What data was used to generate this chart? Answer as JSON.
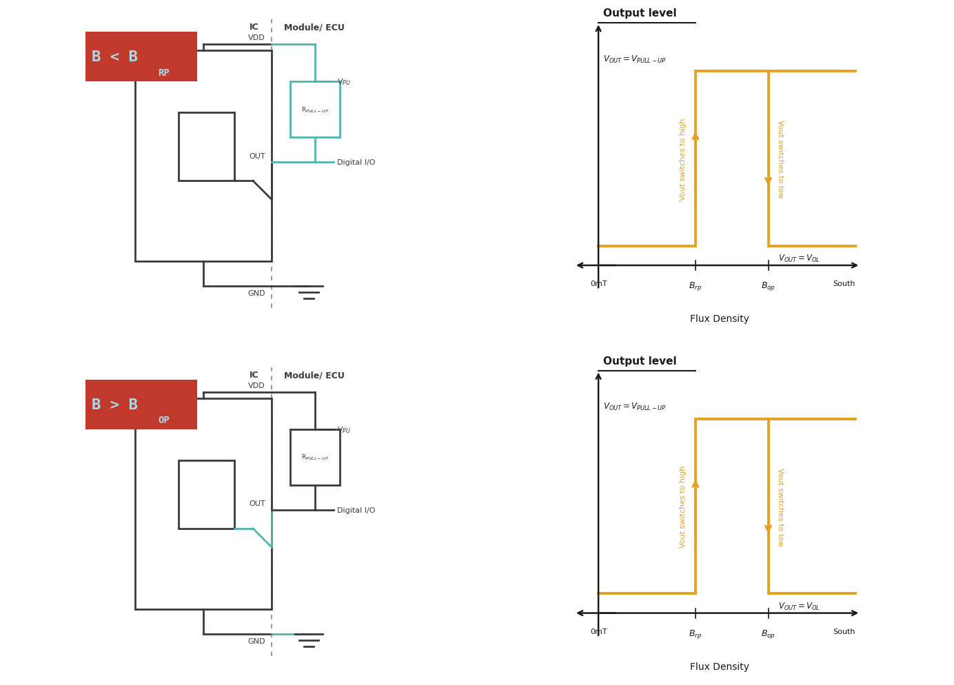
{
  "bg_color": "#ffffff",
  "red_box_color": "#c0392b",
  "teal_color": "#4db6ac",
  "orange_color": "#e8a020",
  "dark_color": "#333333",
  "cc": "#3a3a3a",
  "ic_label": "IC",
  "module_label": "Module/ ECU",
  "vdd_label": "VDD",
  "gnd_label": "GND",
  "out_label": "OUT",
  "vpu_label": "Vₚu",
  "rpullup_label": "RₚulL-up",
  "digital_io_label": "Digital I/O",
  "graph_title": "Output level",
  "flux_density_label": "Flux Density",
  "omt_label": "0mT",
  "south_label": "South",
  "switch_high_label": "Vout switches to high",
  "switch_low_label": "Vout switches to low",
  "top_cond": "B < B",
  "top_sub": "RP",
  "bot_cond": "B > B",
  "bot_sub": "OP"
}
